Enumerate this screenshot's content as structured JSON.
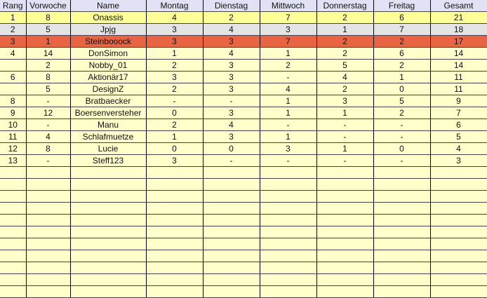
{
  "headers": [
    "Rang",
    "Vorwoche",
    "Name",
    "Montag",
    "Dienstag",
    "Mittwoch",
    "Donnerstag",
    "Freitag",
    "Gesamt"
  ],
  "highlight_colors": {
    "header": "#E2E2F6",
    "first": "#FFFF99",
    "second": "#E4E4E4",
    "third": "#E96443",
    "default": "#FFFFCC"
  },
  "rows": [
    [
      "1",
      "8",
      "Onassis",
      "4",
      "2",
      "7",
      "2",
      "6",
      "21"
    ],
    [
      "2",
      "5",
      "Jpjg",
      "3",
      "4",
      "3",
      "1",
      "7",
      "18"
    ],
    [
      "3",
      "1",
      "Steinbooock",
      "3",
      "3",
      "7",
      "2",
      "2",
      "17"
    ],
    [
      "4",
      "14",
      "DonSimon",
      "1",
      "4",
      "1",
      "2",
      "6",
      "14"
    ],
    [
      "",
      "2",
      "Nobby_01",
      "2",
      "3",
      "2",
      "5",
      "2",
      "14"
    ],
    [
      "6",
      "8",
      "Aktionär17",
      "3",
      "3",
      "-",
      "4",
      "1",
      "11"
    ],
    [
      "",
      "5",
      "DesignZ",
      "2",
      "3",
      "4",
      "2",
      "0",
      "11"
    ],
    [
      "8",
      "-",
      "Bratbaecker",
      "-",
      "-",
      "1",
      "3",
      "5",
      "9"
    ],
    [
      "9",
      "12",
      "Boersenversteher",
      "0",
      "3",
      "1",
      "1",
      "2",
      "7"
    ],
    [
      "10",
      "-",
      "Manu",
      "2",
      "4",
      "-",
      "-",
      "-",
      "6"
    ],
    [
      "11",
      "4",
      "Schlafmuetze",
      "1",
      "3",
      "1",
      "-",
      "-",
      "5"
    ],
    [
      "12",
      "8",
      "Lucie",
      "0",
      "0",
      "3",
      "1",
      "0",
      "4"
    ],
    [
      "13",
      "-",
      "Steff123",
      "3",
      "-",
      "-",
      "-",
      "-",
      "3"
    ]
  ]
}
